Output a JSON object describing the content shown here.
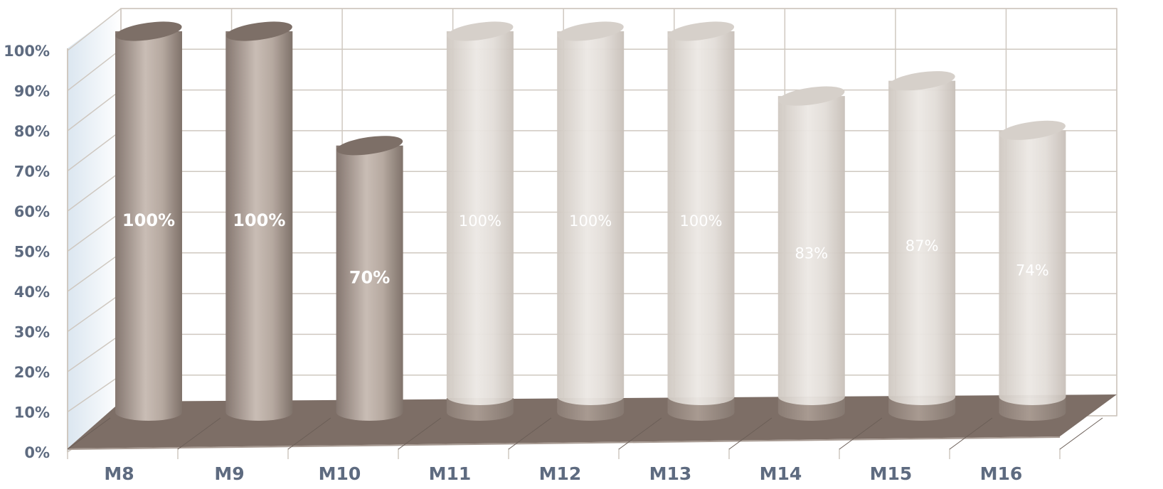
{
  "chart_data": {
    "type": "bar",
    "style": "3d-cylinder",
    "categories": [
      "M8",
      "M9",
      "M10",
      "M11",
      "M12",
      "M13",
      "M14",
      "M15",
      "M16"
    ],
    "values": [
      100,
      100,
      70,
      100,
      100,
      100,
      83,
      87,
      74
    ],
    "data_labels": [
      "100%",
      "100%",
      "70%",
      "100%",
      "100%",
      "100%",
      "83%",
      "87%",
      "74%"
    ],
    "y_ticks": [
      "0%",
      "10%",
      "20%",
      "30%",
      "40%",
      "50%",
      "60%",
      "70%",
      "80%",
      "90%",
      "100%"
    ],
    "ylim": [
      0,
      100
    ],
    "grid": true,
    "title": "",
    "xlabel": "",
    "ylabel": "",
    "bar_styles": [
      "dark",
      "dark",
      "dark",
      "light",
      "light",
      "light",
      "light",
      "light",
      "light"
    ],
    "colors": {
      "dark_bar": "#b2a59b",
      "light_bar": "#e2ddd8",
      "floor": "#7d6e66",
      "grid": "#cfc8c0",
      "axis_text": "#5e6b80"
    }
  }
}
